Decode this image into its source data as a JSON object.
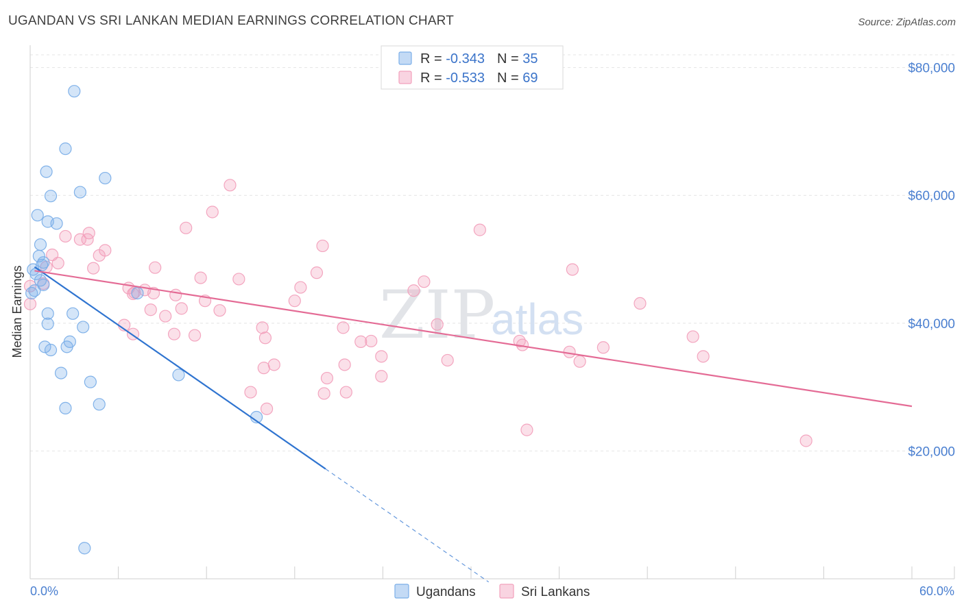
{
  "header": {
    "title": "UGANDAN VS SRI LANKAN MEDIAN EARNINGS CORRELATION CHART",
    "source": "Source: ZipAtlas.com"
  },
  "watermark": {
    "zip": "ZIP",
    "atlas": "atlas"
  },
  "legend": {
    "rows": [
      {
        "r_label": "R = ",
        "r_value": "-0.343",
        "n_label": "N = ",
        "n_value": "35",
        "color": "#7aaee8"
      },
      {
        "r_label": "R = ",
        "r_value": "-0.533",
        "n_label": "N = ",
        "n_value": "69",
        "color": "#f2a0bc"
      }
    ]
  },
  "bottom_legend": {
    "items": [
      "Ugandans",
      "Sri Lankans"
    ]
  },
  "chart_data": {
    "type": "scatter",
    "title": "UGANDAN VS SRI LANKAN MEDIAN EARNINGS CORRELATION CHART",
    "xlabel": "",
    "ylabel": "Median Earnings",
    "xlim": [
      0,
      60
    ],
    "ylim": [
      0,
      82000
    ],
    "x_tick_labels": [
      "0.0%",
      "60.0%"
    ],
    "y_ticks": [
      20000,
      40000,
      60000,
      80000
    ],
    "y_tick_labels": [
      "$20,000",
      "$40,000",
      "$60,000",
      "$80,000"
    ],
    "grid": true,
    "series": [
      {
        "name": "Ugandans",
        "color": "#7aaee8",
        "line_color": "#2f74d0",
        "r": -0.343,
        "n": 35,
        "trend": {
          "x0": 0.3,
          "y0": 48800,
          "x1": 20.1,
          "y1": 17200,
          "dash_to_x": 31.2,
          "dash_to_y": -500
        },
        "points": [
          [
            3.0,
            76300
          ],
          [
            2.4,
            67300
          ],
          [
            1.1,
            63700
          ],
          [
            5.1,
            62700
          ],
          [
            1.4,
            59900
          ],
          [
            3.4,
            60500
          ],
          [
            0.5,
            56900
          ],
          [
            1.2,
            55900
          ],
          [
            1.8,
            55600
          ],
          [
            0.7,
            52300
          ],
          [
            0.6,
            50500
          ],
          [
            0.9,
            49500
          ],
          [
            0.8,
            49100
          ],
          [
            0.2,
            48400
          ],
          [
            0.4,
            47700
          ],
          [
            0.7,
            46700
          ],
          [
            0.9,
            46000
          ],
          [
            0.3,
            45100
          ],
          [
            0.1,
            44700
          ],
          [
            7.3,
            44700
          ],
          [
            1.2,
            41500
          ],
          [
            2.9,
            41500
          ],
          [
            1.2,
            39900
          ],
          [
            3.6,
            39400
          ],
          [
            2.7,
            37100
          ],
          [
            1.0,
            36300
          ],
          [
            2.5,
            36300
          ],
          [
            1.4,
            35800
          ],
          [
            2.1,
            32200
          ],
          [
            4.1,
            30800
          ],
          [
            10.1,
            31900
          ],
          [
            4.7,
            27300
          ],
          [
            2.4,
            26700
          ],
          [
            15.4,
            25300
          ],
          [
            3.7,
            4800
          ]
        ]
      },
      {
        "name": "Sri Lankans",
        "color": "#f2a0bc",
        "line_color": "#e46b95",
        "r": -0.533,
        "n": 69,
        "trend": {
          "x0": 0.3,
          "y0": 48200,
          "x1": 60.0,
          "y1": 27000
        },
        "points": [
          [
            13.6,
            61600
          ],
          [
            12.4,
            57400
          ],
          [
            10.6,
            54900
          ],
          [
            30.6,
            54600
          ],
          [
            4.0,
            54100
          ],
          [
            2.4,
            53600
          ],
          [
            3.9,
            53100
          ],
          [
            3.4,
            53100
          ],
          [
            19.9,
            52100
          ],
          [
            5.1,
            51400
          ],
          [
            1.5,
            50700
          ],
          [
            4.7,
            50600
          ],
          [
            1.9,
            49400
          ],
          [
            1.1,
            48800
          ],
          [
            8.5,
            48700
          ],
          [
            4.3,
            48600
          ],
          [
            36.9,
            48400
          ],
          [
            19.5,
            47900
          ],
          [
            11.6,
            47100
          ],
          [
            14.2,
            46900
          ],
          [
            26.8,
            46500
          ],
          [
            0.9,
            46200
          ],
          [
            18.4,
            45600
          ],
          [
            6.7,
            45500
          ],
          [
            7.8,
            45200
          ],
          [
            7.1,
            44800
          ],
          [
            26.1,
            45100
          ],
          [
            8.4,
            44700
          ],
          [
            9.9,
            44400
          ],
          [
            7.0,
            44600
          ],
          [
            11.9,
            43500
          ],
          [
            18.0,
            43500
          ],
          [
            41.5,
            43100
          ],
          [
            8.2,
            42100
          ],
          [
            10.3,
            42300
          ],
          [
            12.9,
            42000
          ],
          [
            9.2,
            41100
          ],
          [
            6.4,
            39700
          ],
          [
            15.8,
            39300
          ],
          [
            21.3,
            39300
          ],
          [
            27.7,
            39800
          ],
          [
            7.0,
            38300
          ],
          [
            9.8,
            38300
          ],
          [
            11.2,
            38100
          ],
          [
            16.0,
            37700
          ],
          [
            22.5,
            37100
          ],
          [
            23.2,
            37200
          ],
          [
            33.3,
            37200
          ],
          [
            33.5,
            36600
          ],
          [
            39.0,
            36200
          ],
          [
            45.1,
            37900
          ],
          [
            36.7,
            35500
          ],
          [
            23.9,
            34800
          ],
          [
            28.4,
            34200
          ],
          [
            37.4,
            34000
          ],
          [
            45.8,
            34800
          ],
          [
            16.6,
            33500
          ],
          [
            15.9,
            33000
          ],
          [
            21.4,
            33500
          ],
          [
            20.2,
            31400
          ],
          [
            23.9,
            31700
          ],
          [
            15.0,
            29200
          ],
          [
            21.5,
            29200
          ],
          [
            20.0,
            29000
          ],
          [
            16.1,
            26600
          ],
          [
            33.8,
            23300
          ],
          [
            52.8,
            21600
          ],
          [
            0.0,
            43000
          ],
          [
            0.0,
            45800
          ]
        ]
      }
    ]
  }
}
